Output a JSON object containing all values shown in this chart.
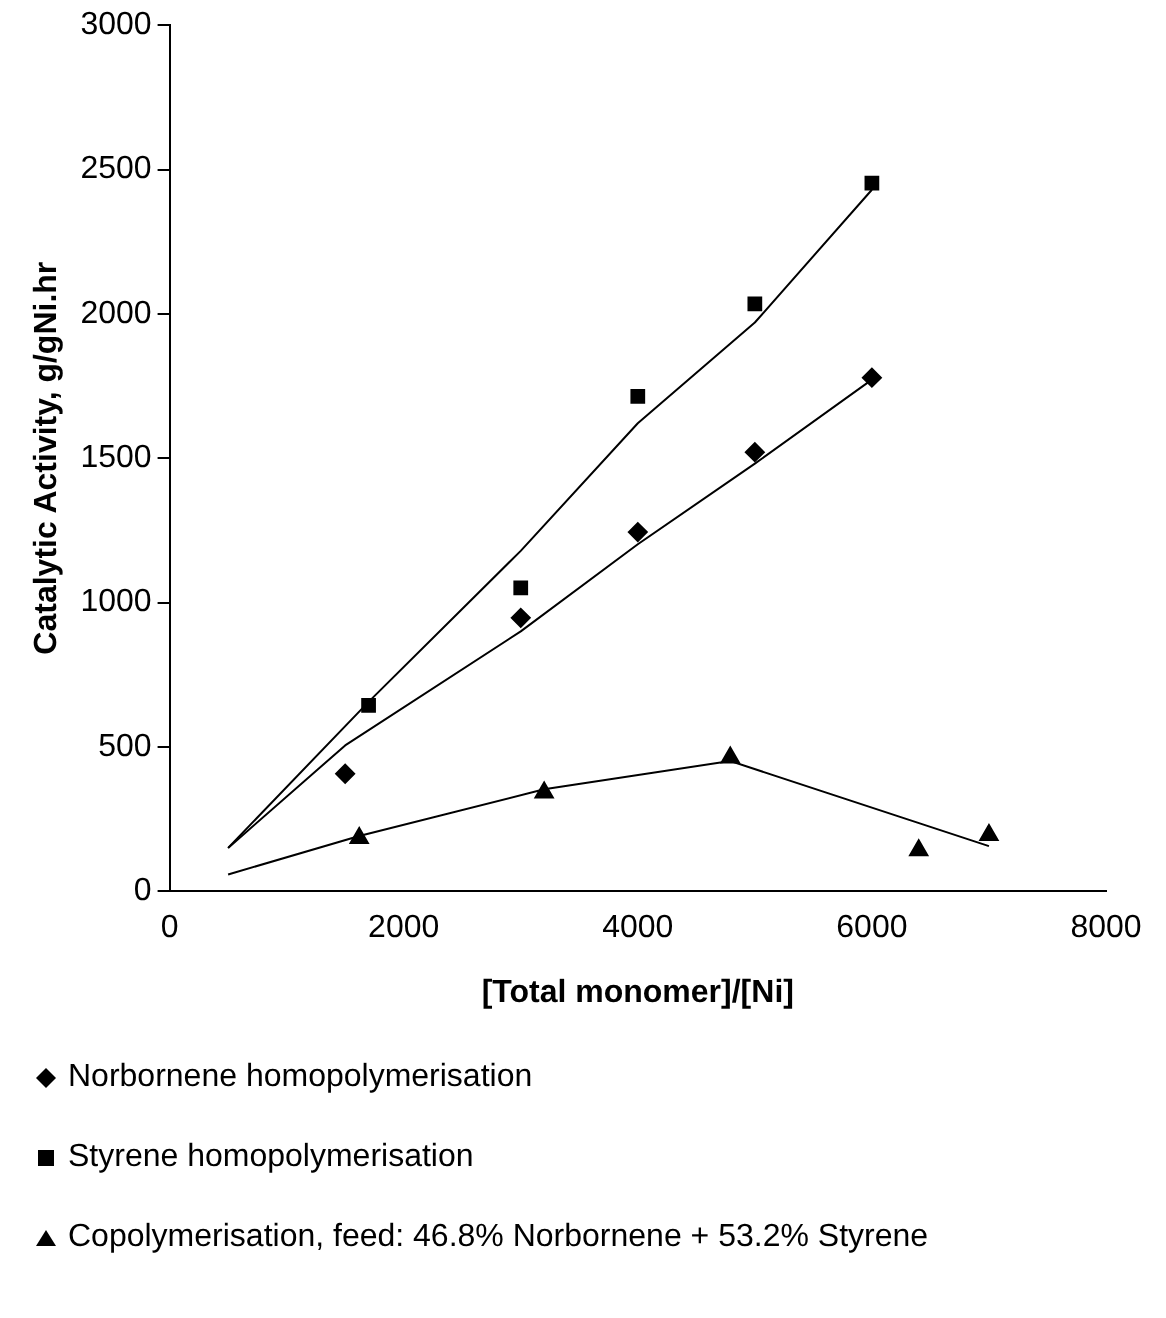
{
  "chart_data": {
    "type": "scatter",
    "xlabel": "[Total monomer]/[Ni]",
    "ylabel": "Catalytic Activity, g/gNi.hr",
    "xlim": [
      0,
      8000
    ],
    "xticks": [
      0,
      2000,
      4000,
      6000,
      8000
    ],
    "ylim": [
      0,
      3000
    ],
    "yticks": [
      0,
      500,
      1000,
      1500,
      2000,
      2500,
      3000
    ],
    "grid": false,
    "legend": "bottom",
    "series": [
      {
        "name": "Norbornene homopolymerisation",
        "color": "#000000",
        "marker": "diamond",
        "x": [
          1500,
          3000,
          4000,
          5000,
          6000
        ],
        "values": [
          407,
          947,
          1244,
          1521,
          1779
        ]
      },
      {
        "name": "Styrene homopolymerisation",
        "color": "#000000",
        "marker": "square",
        "x": [
          1700,
          3000,
          4000,
          5000,
          6000
        ],
        "values": [
          644,
          1051,
          1714,
          2035,
          2453
        ]
      },
      {
        "name": "Copolymerisation, feed: 46.8% Norbornene + 53.2% Styrene",
        "color": "#000000",
        "marker": "triangle",
        "x": [
          1620,
          3200,
          4790,
          6400,
          7000
        ],
        "values": [
          184,
          342,
          463,
          142,
          195
        ]
      },
      {
        "type": "line",
        "color": "#000000",
        "marker": "none",
        "x": [
          500,
          1500,
          3000,
          4000,
          5000,
          6000
        ],
        "values": [
          150,
          505,
          900,
          1202,
          1481,
          1772
        ]
      },
      {
        "type": "line",
        "color": "#000000",
        "marker": "none",
        "x": [
          500,
          1700,
          3000,
          4000,
          5000,
          6000
        ],
        "values": [
          150,
          656,
          1179,
          1621,
          1970,
          2430
        ]
      },
      {
        "type": "line",
        "color": "#000000",
        "marker": "none",
        "x": [
          500,
          1620,
          3200,
          4790,
          7000
        ],
        "values": [
          58,
          191,
          353,
          451,
          156
        ]
      }
    ]
  }
}
